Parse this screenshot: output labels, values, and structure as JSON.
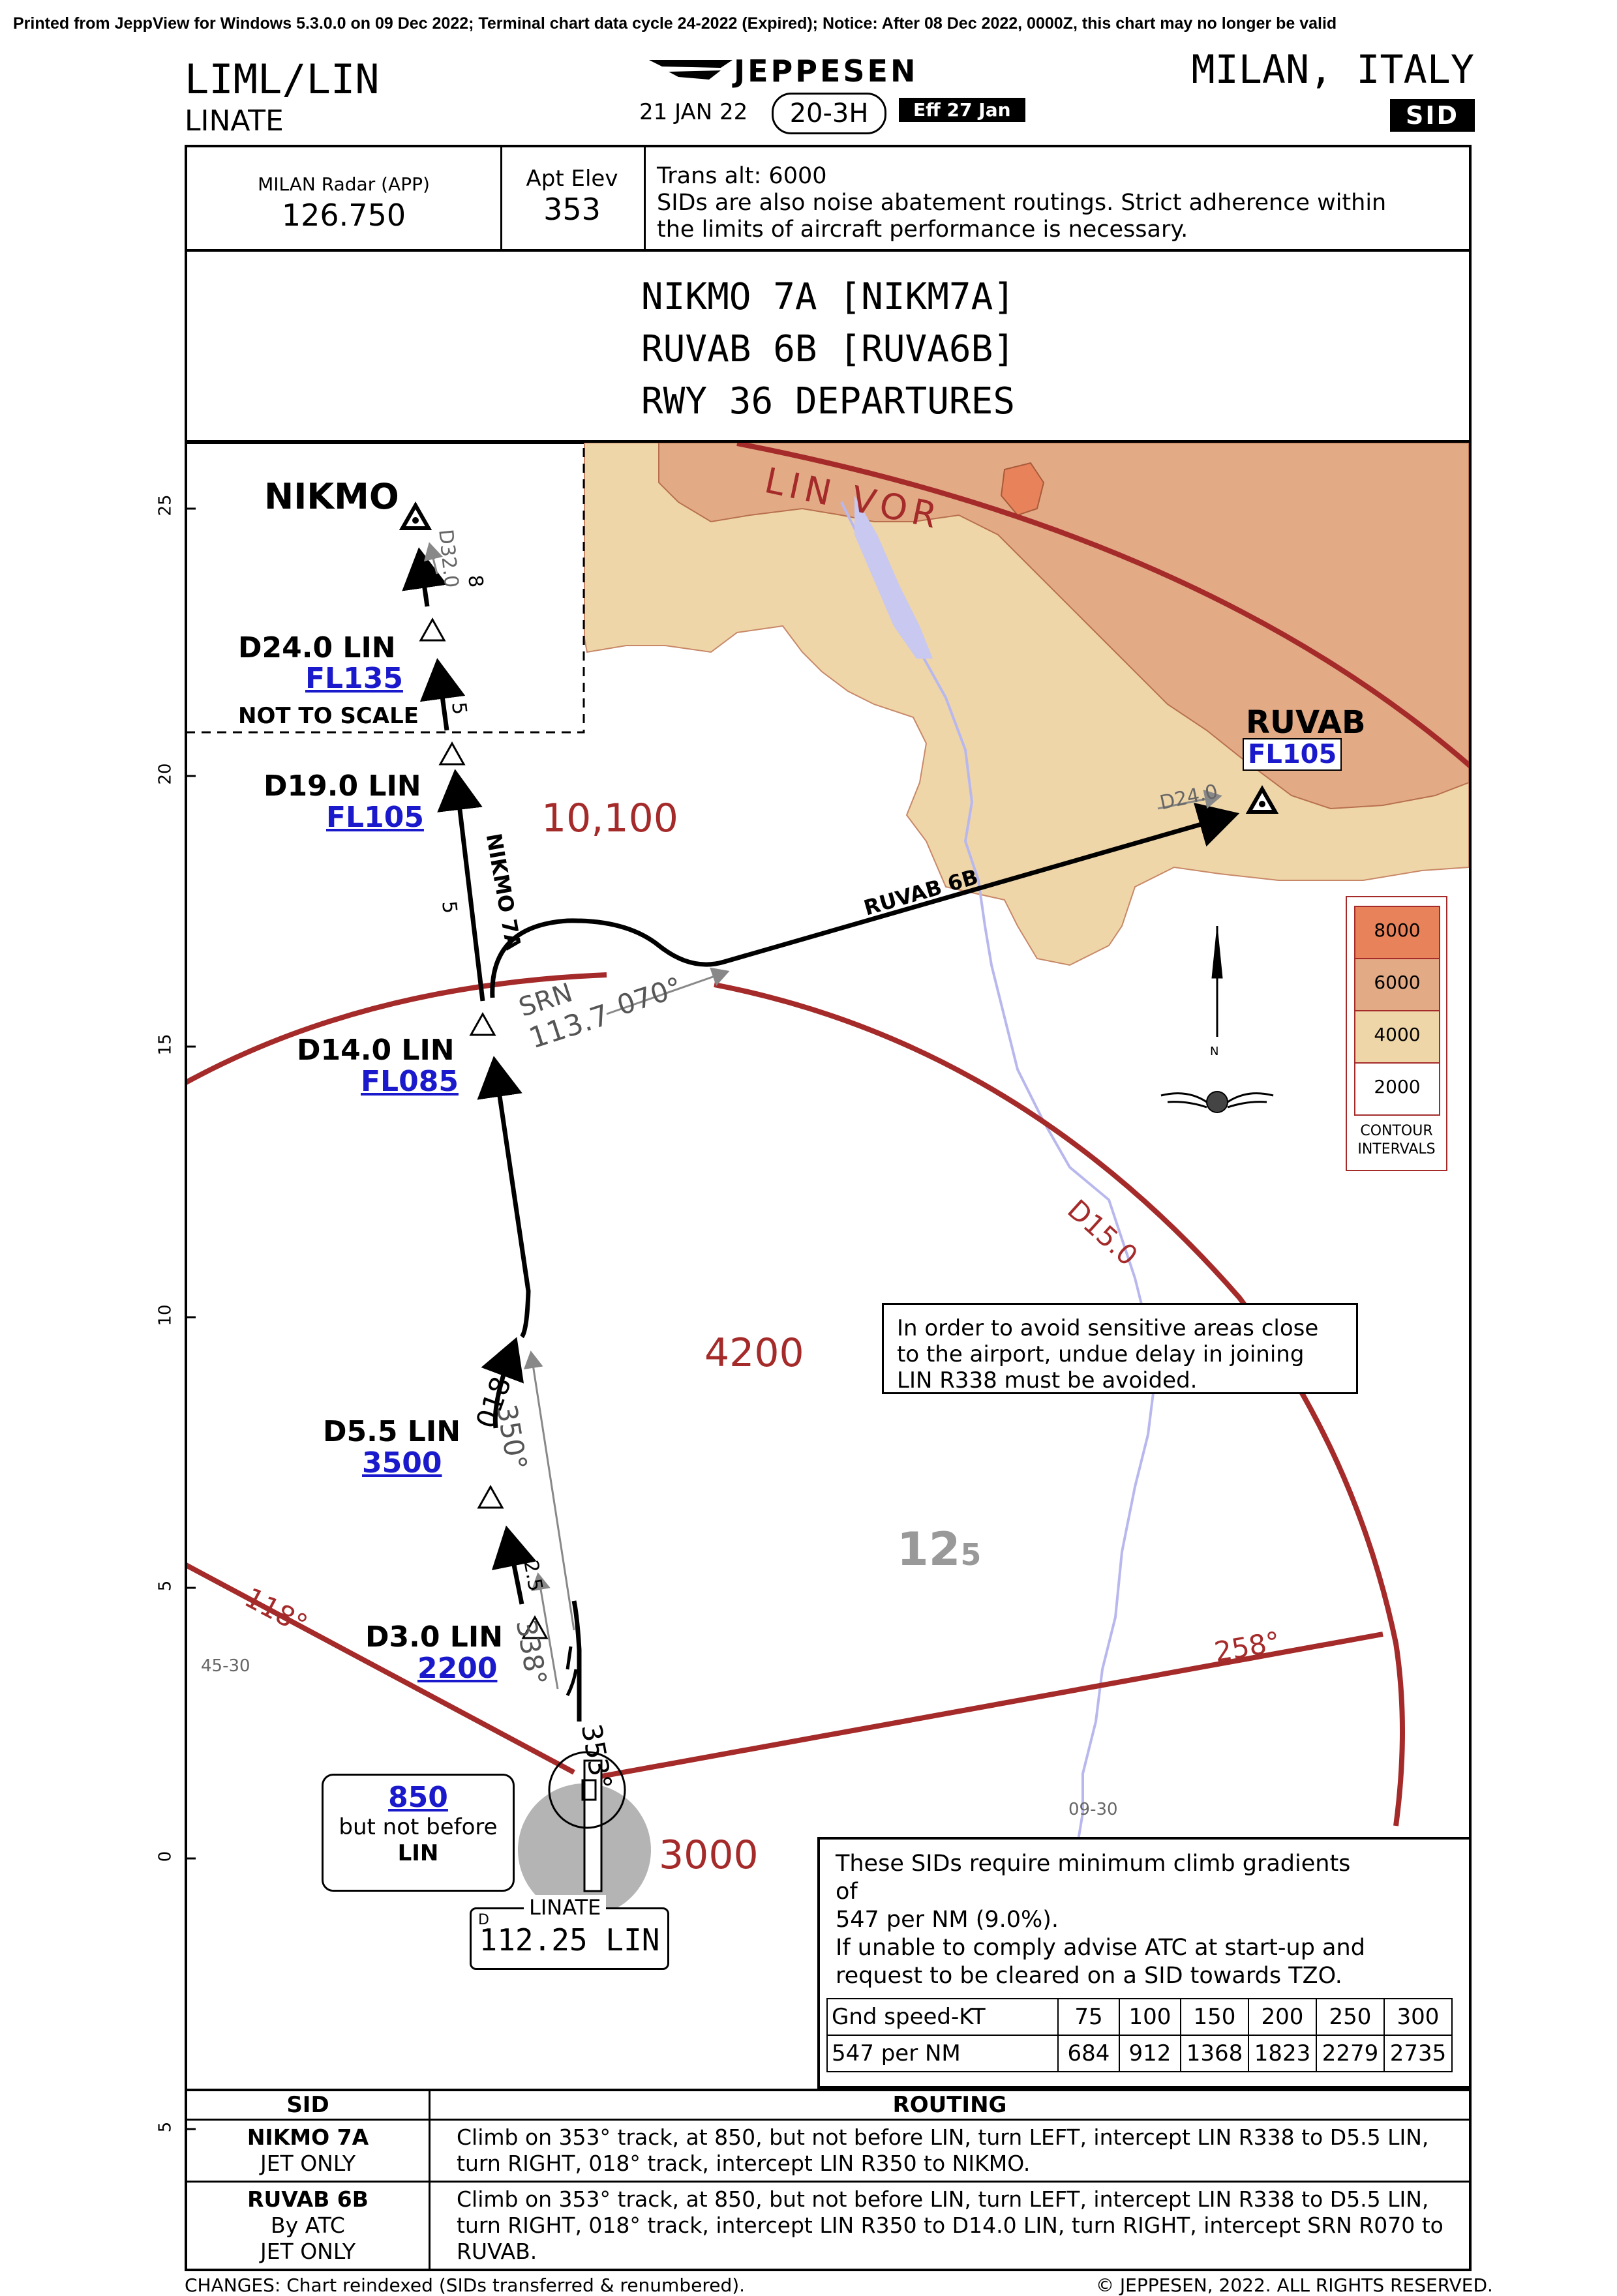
{
  "print_line": "Printed from JeppView for Windows 5.3.0.0 on 09 Dec 2022; Terminal chart data cycle 24-2022 (Expired); Notice: After 08 Dec 2022, 0000Z, this chart may no longer be valid",
  "header": {
    "ident": "LIML/LIN",
    "airport": "LINATE",
    "brand": "JEPPESEN",
    "date": "21 JAN 22",
    "chart_no": "20-3H",
    "effective": "Eff 27 Jan",
    "city": "MILAN, ITALY",
    "type_badge": "SID"
  },
  "comm": {
    "radar_label": "MILAN Radar (APP)",
    "radar_freq": "126.750",
    "elev_label": "Apt Elev",
    "elev_value": "353",
    "notes": [
      "Trans alt: 6000",
      "SIDs are also noise abatement routings. Strict adherence within",
      "the limits of aircraft performance is necessary."
    ]
  },
  "title": {
    "line1": "NIKMO 7A [NIKM7A]",
    "line2": "RUVAB 6B [RUVA6B]",
    "line3": "RWY 36 DEPARTURES"
  },
  "map": {
    "fixes": {
      "nikmo": "NIKMO",
      "d24": "D24.0 LIN",
      "d24_alt": "FL135",
      "d19": "D19.0 LIN",
      "d19_alt": "FL105",
      "d14": "D14.0 LIN",
      "d14_alt": "FL085",
      "d55": "D5.5 LIN",
      "d55_alt": "3500",
      "d3": "D3.0 LIN",
      "d3_alt": "2200",
      "ruvab": "RUVAB",
      "ruvab_alt": "FL105"
    },
    "labels": {
      "not_to_scale": "NOT TO SCALE",
      "lin_vor": "LIN VOR",
      "d15": "D15.0",
      "r118": "118°",
      "r258": "258°",
      "r350": "350°",
      "r338": "338°",
      "r018": "018°",
      "r353": "353°",
      "r070": "070°",
      "srn_name": "SRN",
      "srn_freq": "113.7",
      "nikmo7a": "NIKMO 7A",
      "ruvab6b": "RUVAB 6B",
      "d32": "D32.0",
      "d24_ruvab": "D24.0",
      "seg8": "8",
      "seg5a": "5",
      "seg5b": "5",
      "seg25": "2.5",
      "msa_10100": "10,100",
      "msa_4200": "4200",
      "msa_3000": "3000",
      "obst": "12",
      "obst_sub": "5",
      "latlon_4530": "45-30",
      "latlon_0930": "09-30",
      "alt850": "850",
      "but_not_before": "but not before",
      "lin": "LIN",
      "linate": "LINATE",
      "vor_freq": "112.25 LIN",
      "vor_d": "D"
    },
    "scale_ticks": [
      "25",
      "20",
      "15",
      "10",
      "5",
      "0",
      "5"
    ],
    "avoid_note": [
      "In order to avoid sensitive areas close",
      "to the airport, undue delay in joining",
      "LIN R338 must be avoided."
    ],
    "contour_legend": {
      "values": [
        "8000",
        "6000",
        "4000",
        "2000"
      ],
      "caption1": "CONTOUR",
      "caption2": "INTERVALS"
    },
    "compass": {
      "north": "N"
    },
    "colors": {
      "route_red": "#a52a2a",
      "terrain_light": "#efd6a8",
      "terrain_mid": "#e2ab86",
      "terrain_dark": "#e8825a",
      "water": "#c8c8f0",
      "alt_blue": "#1a1acc"
    }
  },
  "gradient": {
    "lines": [
      "These SIDs require minimum climb gradients",
      "of",
      "547 per NM (9.0%).",
      "If unable to comply advise ATC at start-up and",
      "request to be cleared on a SID towards TZO."
    ],
    "row1_label": "Gnd speed-KT",
    "row1": [
      "75",
      "100",
      "150",
      "200",
      "250",
      "300"
    ],
    "row2_label": "547 per NM",
    "row2": [
      "684",
      "912",
      "1368",
      "1823",
      "2279",
      "2735"
    ]
  },
  "routing": {
    "head_sid": "SID",
    "head_routing": "ROUTING",
    "rows": [
      {
        "sid": "NIKMO 7A",
        "sub1": "JET ONLY",
        "sub2": "",
        "text": "Climb on 353° track, at 850, but not before LIN, turn LEFT, intercept LIN R338 to D5.5 LIN, turn RIGHT, 018° track, intercept LIN R350 to NIKMO."
      },
      {
        "sid": "RUVAB 6B",
        "sub1": "By ATC",
        "sub2": "JET ONLY",
        "text": "Climb on 353° track, at 850, but not before LIN, turn LEFT, intercept LIN R338 to D5.5 LIN, turn RIGHT, 018° track, intercept LIN R350 to D14.0 LIN, turn RIGHT, intercept SRN R070 to RUVAB."
      }
    ]
  },
  "footer": {
    "changes": "CHANGES:  Chart reindexed (SIDs transferred & renumbered).",
    "copyright": "© JEPPESEN, 2022. ALL RIGHTS RESERVED."
  }
}
